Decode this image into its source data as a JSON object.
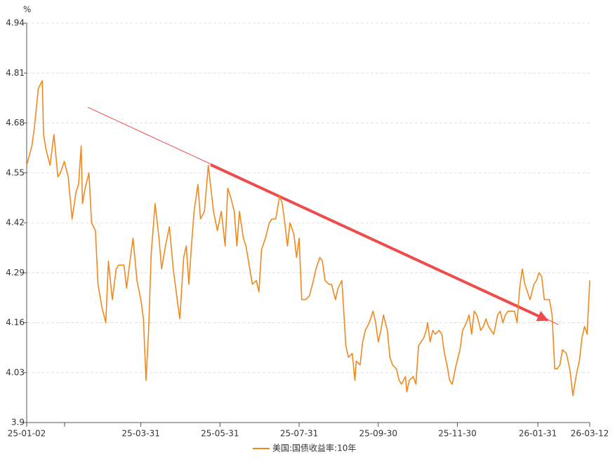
{
  "chart_data": {
    "type": "line",
    "ylabel": "%",
    "x": [
      "25-01-02",
      "25-01-06",
      "25-01-08",
      "25-01-11",
      "25-01-14",
      "25-01-15",
      "25-01-17",
      "25-01-20",
      "25-01-23",
      "25-01-26",
      "25-01-28",
      "25-01-31",
      "25-02-03",
      "25-02-06",
      "25-02-09",
      "25-02-11",
      "25-02-13",
      "25-02-14",
      "25-02-16",
      "25-02-19",
      "25-02-21",
      "25-02-24",
      "25-02-26",
      "25-03-01",
      "25-03-04",
      "25-03-06",
      "25-03-09",
      "25-03-12",
      "25-03-14",
      "25-03-18",
      "25-03-20",
      "25-03-23",
      "25-03-25",
      "25-03-28",
      "25-03-31",
      "25-04-02",
      "25-04-04",
      "25-04-06",
      "25-04-08",
      "25-04-11",
      "25-04-14",
      "25-04-16",
      "25-04-19",
      "25-04-22",
      "25-04-25",
      "25-04-28",
      "25-04-30",
      "25-05-03",
      "25-05-05",
      "25-05-07",
      "25-05-09",
      "25-05-11",
      "25-05-14",
      "25-05-16",
      "25-05-19",
      "25-05-22",
      "25-05-24",
      "25-05-26",
      "25-05-29",
      "25-06-01",
      "25-06-04",
      "25-06-06",
      "25-06-08",
      "25-06-11",
      "25-06-13",
      "25-06-15",
      "25-06-18",
      "25-06-20",
      "25-06-23",
      "25-06-25",
      "25-06-28",
      "25-06-30",
      "25-07-02",
      "25-07-05",
      "25-07-08",
      "25-07-10",
      "25-07-13",
      "25-07-16",
      "25-07-18",
      "25-07-20",
      "25-07-22",
      "25-07-24",
      "25-07-27",
      "25-07-29",
      "25-07-31",
      "25-08-02",
      "25-08-05",
      "25-08-08",
      "25-08-11",
      "25-08-13",
      "25-08-16",
      "25-08-18",
      "25-08-20",
      "25-08-23",
      "25-08-25",
      "25-08-28",
      "25-08-30",
      "25-09-02",
      "25-09-05",
      "25-09-07",
      "25-09-10",
      "25-09-12",
      "25-09-13",
      "25-09-16",
      "25-09-18",
      "25-09-20",
      "25-09-23",
      "25-09-26",
      "25-09-28",
      "25-09-30",
      "25-10-02",
      "25-10-04",
      "25-10-07",
      "25-10-09",
      "25-10-11",
      "25-10-14",
      "25-10-16",
      "25-10-18",
      "25-10-21",
      "25-10-22",
      "25-10-24",
      "25-10-27",
      "25-10-29",
      "25-10-31",
      "25-11-02",
      "25-11-04",
      "25-11-06",
      "25-11-07",
      "25-11-09",
      "25-11-11",
      "25-11-13",
      "25-11-16",
      "25-11-18",
      "25-11-20",
      "25-11-22",
      "25-11-24",
      "25-11-26",
      "25-11-29",
      "25-12-02",
      "25-12-04",
      "25-12-07",
      "25-12-09",
      "25-12-11",
      "25-12-13",
      "25-12-15",
      "25-12-18",
      "25-12-20",
      "25-12-22",
      "25-12-24",
      "25-12-26",
      "25-12-28",
      "25-12-31",
      "26-01-02",
      "26-01-04",
      "26-01-06",
      "26-01-08",
      "26-01-10",
      "26-01-13",
      "26-01-15",
      "26-01-17",
      "26-01-19",
      "26-01-21",
      "26-01-23",
      "26-01-25",
      "26-01-28",
      "26-01-30",
      "26-02-01",
      "26-02-03",
      "26-02-05",
      "26-02-07",
      "26-02-09",
      "26-02-11",
      "26-02-13",
      "26-02-15",
      "26-02-17",
      "26-02-19",
      "26-02-22",
      "26-02-24",
      "26-02-25",
      "26-02-27",
      "26-03-02",
      "26-03-04",
      "26-03-06",
      "26-03-08",
      "26-03-10",
      "26-03-12"
    ],
    "series": [
      {
        "name": "美国:国债收益率:10年",
        "color": "#f0891d",
        "values": [
          4.57,
          4.62,
          4.67,
          4.77,
          4.79,
          4.65,
          4.61,
          4.57,
          4.65,
          4.54,
          4.55,
          4.58,
          4.54,
          4.43,
          4.5,
          4.52,
          4.62,
          4.47,
          4.51,
          4.55,
          4.42,
          4.4,
          4.26,
          4.2,
          4.16,
          4.32,
          4.22,
          4.3,
          4.31,
          4.31,
          4.25,
          4.33,
          4.38,
          4.27,
          4.22,
          4.17,
          4.01,
          4.14,
          4.34,
          4.47,
          4.38,
          4.3,
          4.36,
          4.41,
          4.3,
          4.22,
          4.17,
          4.33,
          4.36,
          4.26,
          4.36,
          4.45,
          4.52,
          4.43,
          4.45,
          4.57,
          4.51,
          4.45,
          4.4,
          4.45,
          4.36,
          4.51,
          4.49,
          4.45,
          4.36,
          4.45,
          4.38,
          4.36,
          4.3,
          4.26,
          4.27,
          4.24,
          4.35,
          4.38,
          4.42,
          4.43,
          4.43,
          4.49,
          4.47,
          4.42,
          4.36,
          4.42,
          4.39,
          4.33,
          4.38,
          4.22,
          4.22,
          4.23,
          4.27,
          4.3,
          4.33,
          4.32,
          4.27,
          4.26,
          4.26,
          4.22,
          4.25,
          4.27,
          4.1,
          4.07,
          4.08,
          4.01,
          4.06,
          4.05,
          4.11,
          4.14,
          4.16,
          4.19,
          4.16,
          4.11,
          4.14,
          4.18,
          4.14,
          4.07,
          4.05,
          4.04,
          4.01,
          4.0,
          4.02,
          3.98,
          4.01,
          4.02,
          4.0,
          4.1,
          4.11,
          4.12,
          4.14,
          4.16,
          4.11,
          4.14,
          4.13,
          4.14,
          4.13,
          4.08,
          4.05,
          4.01,
          4.0,
          4.05,
          4.09,
          4.14,
          4.16,
          4.18,
          4.13,
          4.19,
          4.18,
          4.14,
          4.15,
          4.17,
          4.15,
          4.14,
          4.13,
          4.18,
          4.19,
          4.16,
          4.18,
          4.19,
          4.19,
          4.19,
          4.16,
          4.25,
          4.3,
          4.26,
          4.24,
          4.22,
          4.26,
          4.27,
          4.29,
          4.28,
          4.22,
          4.22,
          4.22,
          4.18,
          4.04,
          4.04,
          4.05,
          4.09,
          4.08,
          4.05,
          4.03,
          3.97,
          4.03,
          4.06,
          4.12,
          4.15,
          4.13,
          4.27
        ]
      }
    ],
    "xlim": [
      "25-01-02",
      "26-03-12"
    ],
    "xticks": [
      "25-01-02",
      "25-03-31",
      "25-05-31",
      "25-07-31",
      "25-09-30",
      "25-11-30",
      "26-01-31",
      "26-03-12"
    ],
    "ylim": [
      3.9,
      4.94
    ],
    "yticks": [
      3.9,
      4.03,
      4.16,
      4.29,
      4.42,
      4.55,
      4.68,
      4.81,
      4.94
    ],
    "grid": true
  }
}
